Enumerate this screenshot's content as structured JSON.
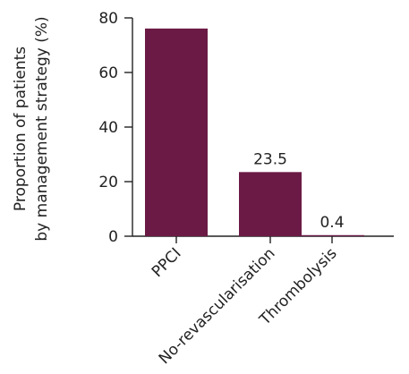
{
  "chart_data": {
    "type": "bar",
    "categories": [
      "PPCI",
      "No-revascularisation",
      "Thrombolysis"
    ],
    "values": [
      76.1,
      23.5,
      0.4
    ],
    "data_labels": [
      "",
      "23.5",
      "0.4"
    ],
    "title": "",
    "xlabel": "",
    "ylabel_lines": [
      "Proportion of patients",
      "by management strategy (%)"
    ],
    "ylim": [
      0,
      80
    ],
    "yticks": [
      "0",
      "20",
      "40",
      "60",
      "80"
    ],
    "bar_color": "#6b1a45",
    "grid": false,
    "legend": "none"
  }
}
